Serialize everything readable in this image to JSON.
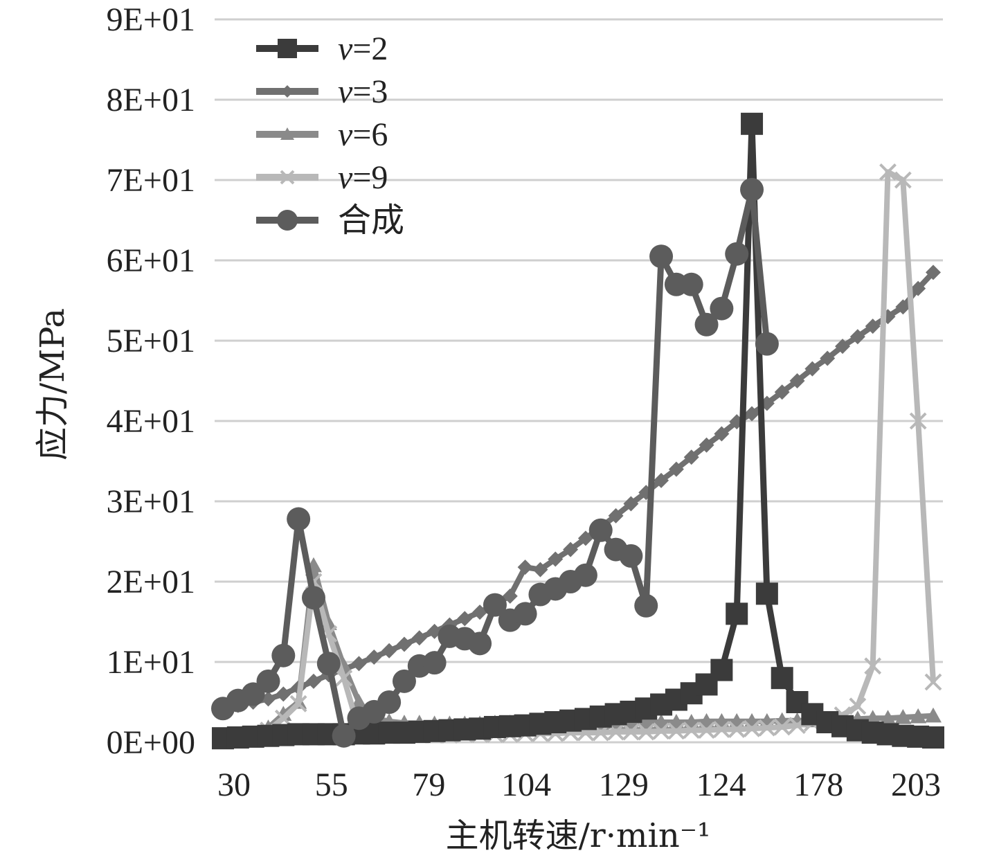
{
  "chart_data": {
    "type": "line",
    "title": "",
    "xlabel": "主机转速/r·min⁻¹",
    "ylabel": "应力/MPa",
    "ylim": [
      0,
      90
    ],
    "yticks": [
      "0E+00",
      "1E+01",
      "2E+01",
      "3E+01",
      "4E+01",
      "5E+01",
      "6E+01",
      "7E+01",
      "8E+01",
      "9E+01"
    ],
    "xtick_labels": [
      "30",
      "55",
      "79",
      "104",
      "129",
      "124",
      "178",
      "203"
    ],
    "grid": true,
    "legend_position": "top-left",
    "x": [
      1,
      2,
      3,
      4,
      5,
      6,
      7,
      8,
      9,
      10,
      11,
      12,
      13,
      14,
      15,
      16,
      17,
      18,
      19,
      20,
      21,
      22,
      23,
      24,
      25,
      26,
      27,
      28,
      29,
      30,
      31,
      32,
      33,
      34,
      35,
      36,
      37,
      38,
      39,
      40,
      41,
      42,
      43,
      44,
      45,
      46,
      47,
      48
    ],
    "series": [
      {
        "name": "v=2",
        "legend_var": "v",
        "legend_val": "=2",
        "color": "#3b3b3b",
        "marker": "square",
        "values": [
          0.5,
          0.6,
          0.7,
          0.8,
          0.9,
          1.0,
          1.0,
          1.0,
          1.0,
          1.1,
          1.1,
          1.2,
          1.2,
          1.3,
          1.4,
          1.5,
          1.6,
          1.7,
          1.9,
          2.0,
          2.1,
          2.3,
          2.5,
          2.7,
          2.9,
          3.2,
          3.5,
          3.8,
          4.2,
          4.7,
          5.3,
          6.1,
          7.2,
          9.0,
          16.0,
          77.0,
          18.5,
          8.0,
          5.0,
          3.5,
          2.5,
          2.0,
          1.5,
          1.2,
          1.0,
          0.8,
          0.7,
          0.6
        ]
      },
      {
        "name": "v=3",
        "legend_var": "v",
        "legend_val": "=3",
        "color": "#707070",
        "marker": "diamond",
        "values": [
          4.3,
          4.6,
          5.0,
          5.4,
          6.0,
          6.8,
          7.6,
          8.4,
          9.1,
          9.8,
          10.6,
          11.4,
          12.2,
          13.0,
          13.8,
          14.6,
          15.4,
          16.2,
          17.2,
          18.2,
          21.8,
          21.5,
          22.8,
          24.0,
          25.4,
          26.8,
          28.2,
          29.7,
          31.1,
          32.6,
          34.0,
          35.5,
          37.0,
          38.4,
          39.9,
          40.9,
          42.2,
          43.6,
          45.0,
          46.5,
          47.8,
          49.3,
          50.5,
          51.8,
          53.0,
          54.2,
          56.5,
          58.5
        ]
      },
      {
        "name": "v=6",
        "legend_var": "v",
        "legend_val": "=6",
        "color": "#8a8a8a",
        "marker": "triangle",
        "values": [
          0.7,
          0.8,
          1.0,
          1.8,
          3.5,
          5.0,
          22.0,
          14.8,
          9.5,
          5.0,
          3.0,
          2.6,
          2.4,
          2.4,
          2.3,
          2.3,
          2.3,
          2.3,
          2.4,
          2.4,
          2.4,
          2.4,
          2.4,
          2.4,
          2.4,
          2.4,
          2.5,
          2.5,
          2.5,
          2.5,
          2.5,
          2.5,
          2.6,
          2.6,
          2.6,
          2.6,
          2.6,
          2.7,
          2.7,
          2.7,
          2.8,
          2.8,
          2.9,
          3.0,
          3.0,
          3.1,
          3.2,
          3.3
        ]
      },
      {
        "name": "v=9",
        "legend_var": "v",
        "legend_val": "=9",
        "color": "#b8b8b8",
        "marker": "x",
        "values": [
          0.5,
          0.6,
          0.7,
          1.5,
          3.0,
          4.8,
          20.0,
          13.5,
          8.0,
          1.5,
          1.0,
          0.9,
          0.9,
          0.9,
          0.9,
          0.9,
          1.0,
          1.0,
          1.0,
          1.0,
          1.1,
          1.1,
          1.1,
          1.2,
          1.2,
          1.2,
          1.3,
          1.3,
          1.3,
          1.4,
          1.4,
          1.5,
          1.5,
          1.6,
          1.6,
          1.7,
          1.8,
          1.9,
          2.1,
          2.4,
          2.8,
          3.4,
          4.5,
          9.5,
          71.0,
          70.0,
          40.0,
          7.5
        ]
      },
      {
        "name": "合成",
        "legend_var": "",
        "legend_val": "合成",
        "color": "#5c5c5c",
        "marker": "circle",
        "values": [
          4.2,
          5.2,
          6.0,
          7.6,
          10.8,
          27.8,
          18.0,
          9.8,
          0.8,
          3.0,
          3.8,
          5.0,
          7.6,
          9.5,
          9.9,
          13.2,
          12.9,
          12.3,
          17.1,
          15.2,
          16.0,
          18.4,
          19.1,
          20.0,
          20.8,
          26.4,
          24.0,
          23.2,
          17.0,
          60.5,
          57.0,
          57.0,
          52.0,
          54.0,
          60.8,
          68.8,
          49.6,
          null,
          null,
          null,
          null,
          null,
          null,
          null,
          null,
          null,
          null,
          null
        ]
      }
    ]
  }
}
